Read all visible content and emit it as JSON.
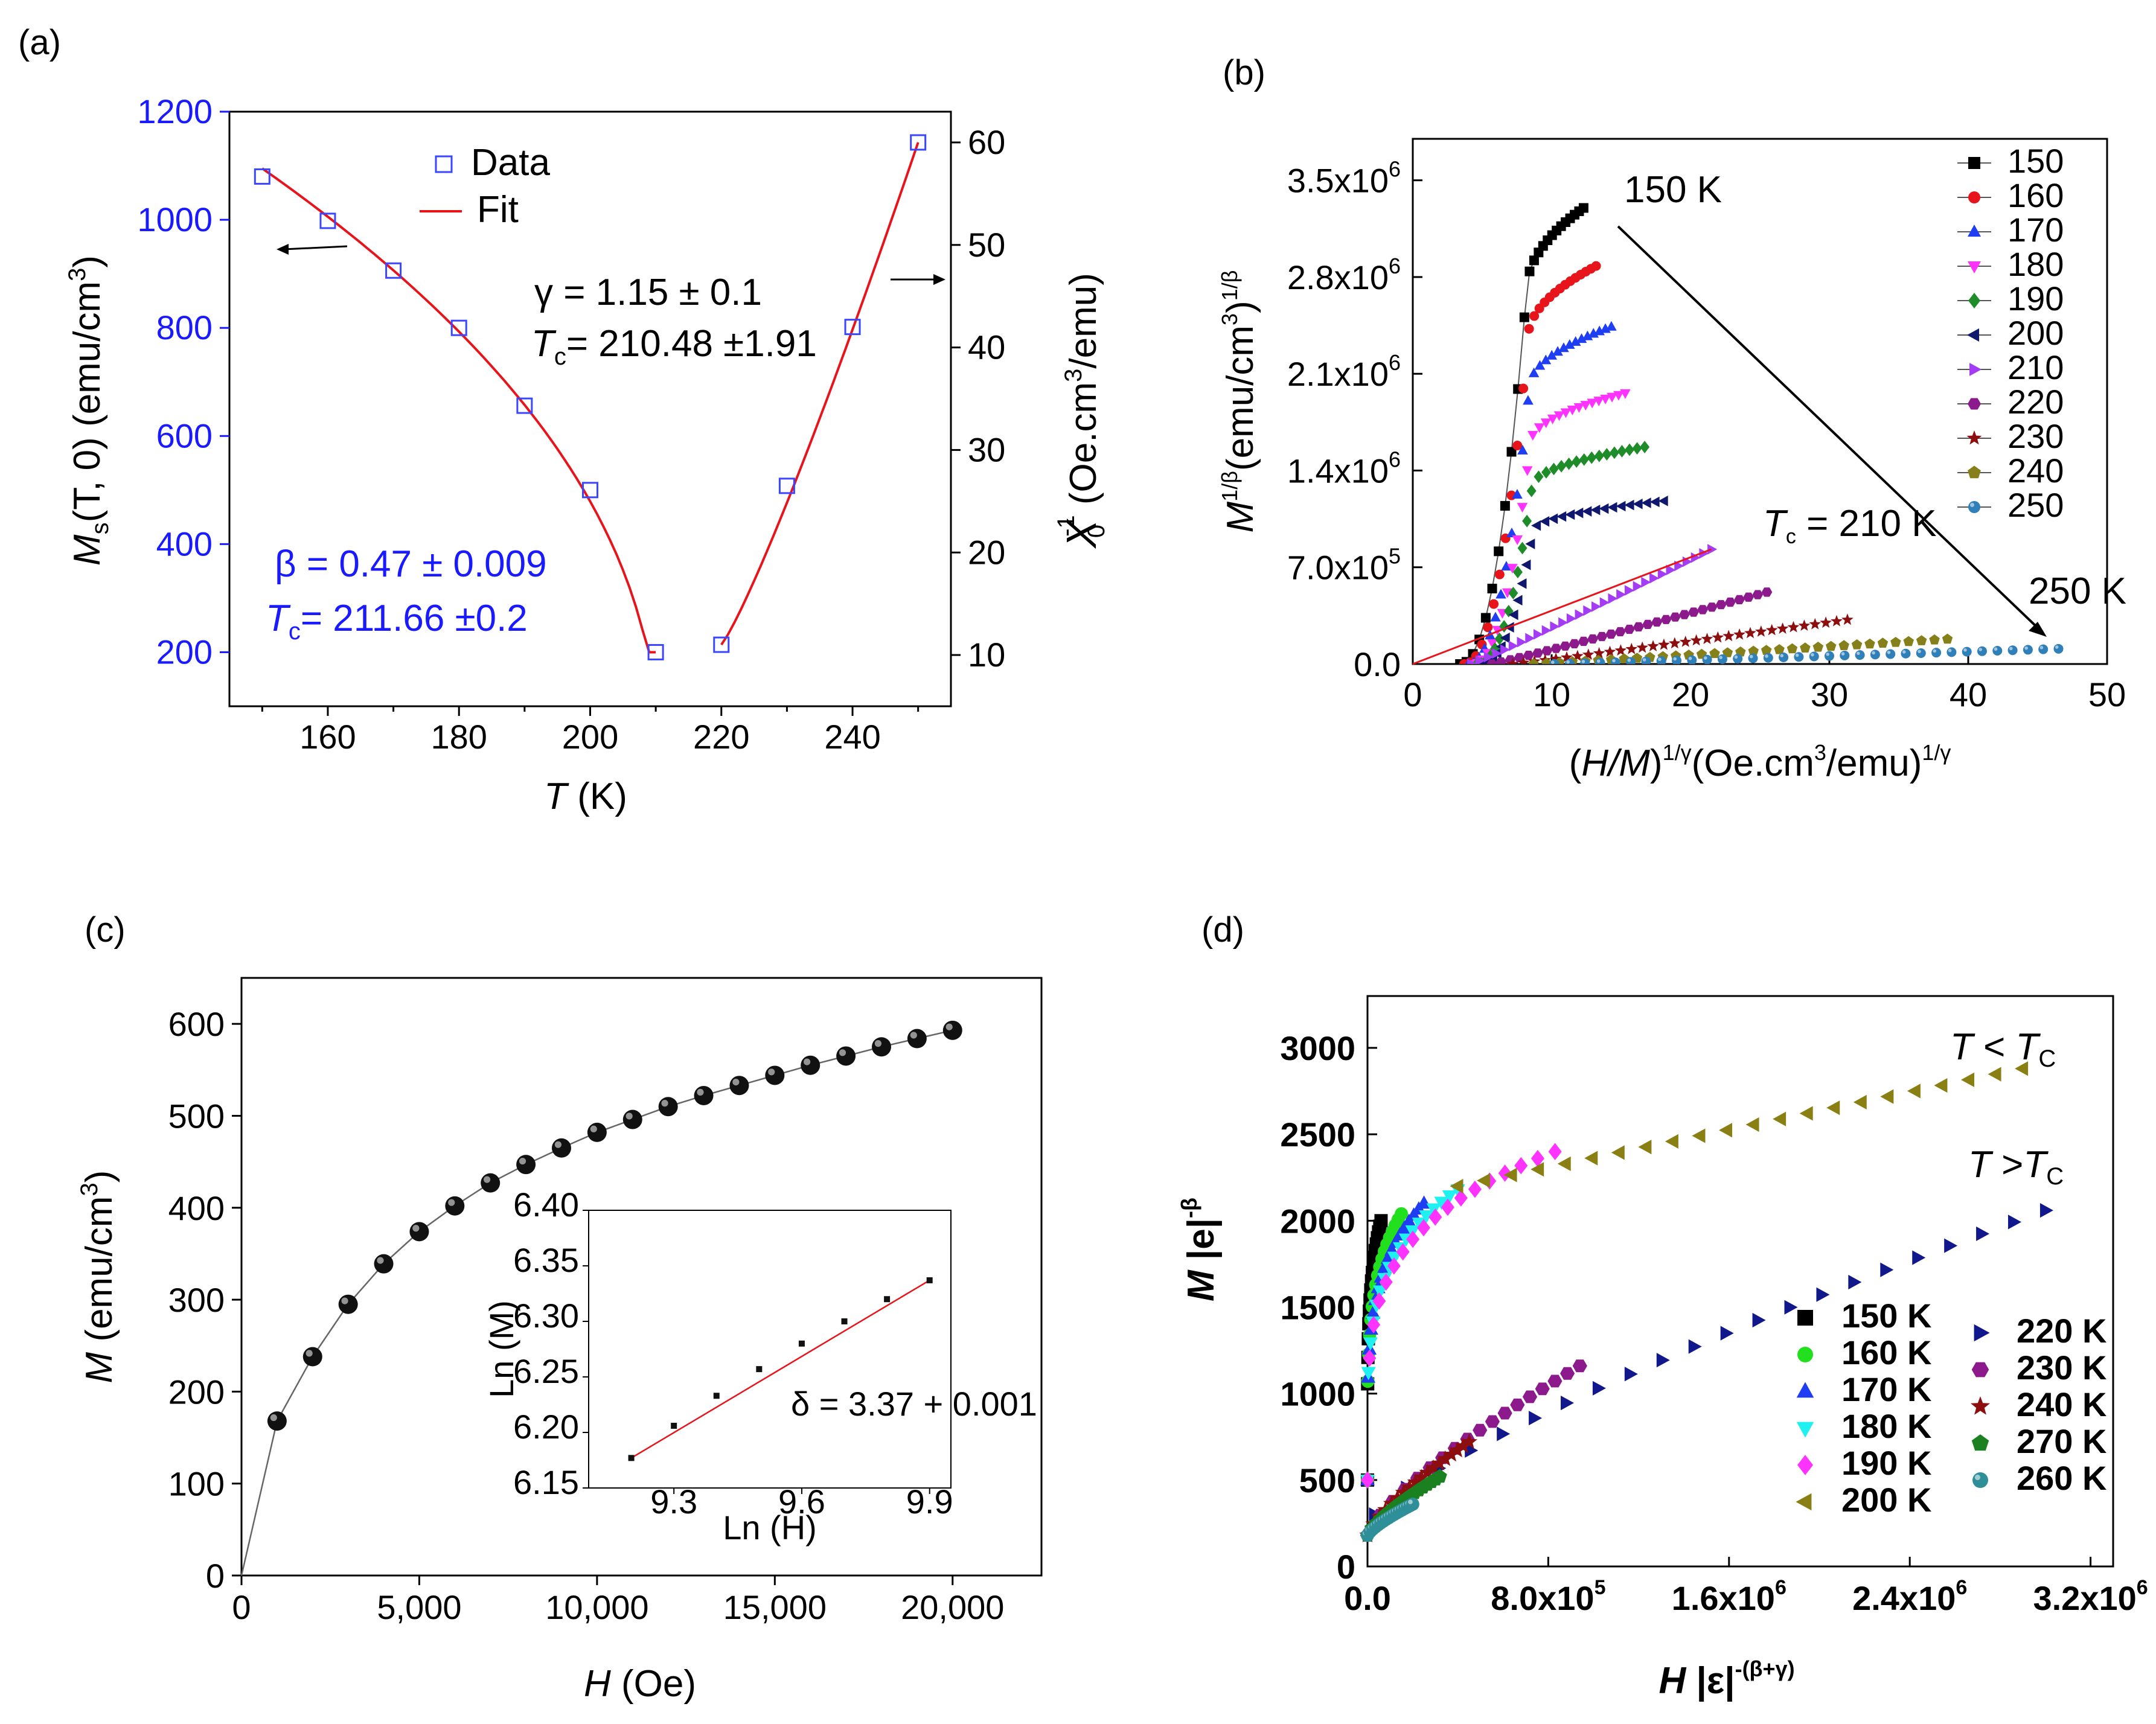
{
  "chart_data": [
    {
      "panel": "(a)",
      "type": "scatter",
      "xlabel": "T (K)",
      "ylabel_left": "Ms(T, 0) (emu/cm3)",
      "ylabel_right": "X0^-1 (Oe.cm3/emu)",
      "xlim": [
        145,
        255
      ],
      "ylim_left": [
        100,
        1200
      ],
      "ylim_right": [
        5,
        63
      ],
      "x_ticks": [
        "160",
        "180",
        "200",
        "220",
        "240"
      ],
      "y_ticks_left": [
        "200",
        "400",
        "600",
        "800",
        "1000",
        "1200"
      ],
      "y_ticks_right": [
        "10",
        "20",
        "30",
        "40",
        "50",
        "60"
      ],
      "legend": [
        "Data",
        "Fit"
      ],
      "series": [
        {
          "name": "Ms(T,0)",
          "axis": "left",
          "x": [
            150,
            160,
            170,
            180,
            190,
            200,
            210
          ],
          "y": [
            1080,
            998,
            906,
            800,
            656,
            500,
            200
          ]
        },
        {
          "name": "X0^-1",
          "axis": "right",
          "x": [
            220,
            230,
            240,
            250
          ],
          "y": [
            11,
            26.5,
            42,
            60
          ]
        }
      ],
      "annotations": {
        "gamma": "γ = 1.15 ± 0.1",
        "tc_gamma": "= 210.48 ±1.91",
        "beta": "β = 0.47 ± 0.009",
        "tc_beta": "= 211.66 ±0.2"
      },
      "text": {
        "label": "(a)",
        "tc_symbol": "T",
        "tc_sub": "c",
        "ms_symbol": "M",
        "ms_sub": "s",
        "ms_rest": "(T, 0) (emu/cm",
        "ms_sup": "3",
        "ms_close": ")",
        "chi_symbol": "X",
        "chi_sub": "0",
        "chi_sup": "-1",
        "chi_rest": "(Oe.cm",
        "chi_sup2": "3",
        "chi_close": "/emu)",
        "x_symbol": "T",
        "x_unit": "(K)"
      }
    },
    {
      "panel": "(b)",
      "type": "scatter",
      "xlabel": "(H/M)^(1/γ) (Oe.cm3/emu)^(1/γ)",
      "ylabel": "M^(1/β) (emu/cm3)^(1/β)",
      "xlim": [
        0,
        50
      ],
      "ylim": [
        0,
        3800000
      ],
      "x_ticks": [
        "0",
        "10",
        "20",
        "30",
        "40",
        "50"
      ],
      "y_ticks": [
        "0.0",
        "7.0x10",
        "1.4x10",
        "2.1x10",
        "2.8x10",
        "3.5x10"
      ],
      "y_tick_exp": [
        "",
        "5",
        "6",
        "6",
        "6",
        "6"
      ],
      "legend": [
        "150",
        "160",
        "170",
        "180",
        "190",
        "200",
        "210",
        "220",
        "230",
        "240",
        "250"
      ],
      "colors": [
        "#000000",
        "#e8141b",
        "#1f3df2",
        "#ff33ff",
        "#1f8c2a",
        "#10186e",
        "#a53cf5",
        "#8c1a8c",
        "#8c0e0e",
        "#85801a",
        "#2f7fb8"
      ],
      "series_end_x": [
        12.3,
        13.2,
        14.3,
        15.3,
        16.7,
        18.1,
        21.5,
        25.5,
        31.3,
        38.5,
        46.5
      ],
      "series_end_y": [
        3300000,
        2880000,
        2440000,
        1960000,
        1570000,
        1180000,
        830000,
        520000,
        320000,
        180000,
        110000
      ],
      "annotations": {
        "tc_line_rest": " = 210 K",
        "t150": "150 K",
        "t250": "250 K"
      },
      "text": {
        "label": "(b)",
        "tc_symbol": "T",
        "tc_sub": "c",
        "ylab_m": "M",
        "ylab_sup": "1/β",
        "ylab_rest": "(emu/cm",
        "ylab_3": "3",
        "ylab_close": ")",
        "ylab_sup2": "1/β",
        "xlab_open": "(",
        "xlab_hm": "H/M",
        "xlab_close": ")",
        "xlab_sup": "1/γ",
        "xlab_rest": "(Oe.cm",
        "xlab_3": "3",
        "xlab_close2": "/emu)",
        "xlab_sup2": "1/γ"
      }
    },
    {
      "panel": "(c)",
      "type": "scatter",
      "xlabel": "H (Oe)",
      "ylabel": "M (emu/cm3)",
      "xlim": [
        0,
        22500
      ],
      "ylim": [
        0,
        650
      ],
      "x_ticks": [
        "0",
        "5,000",
        "10,000",
        "15,000",
        "20,000"
      ],
      "y_ticks": [
        "0",
        "100",
        "200",
        "300",
        "400",
        "500",
        "600"
      ],
      "x": [
        0,
        1000,
        2000,
        3000,
        4000,
        5000,
        6000,
        7000,
        8000,
        9000,
        10000,
        11000,
        12000,
        13000,
        14000,
        15000,
        16000,
        17000,
        18000,
        19000,
        20000
      ],
      "y": [
        0,
        168,
        238,
        295,
        339,
        374,
        402,
        427,
        447,
        465,
        482,
        496,
        510,
        522,
        533,
        544,
        555,
        565,
        575,
        584,
        593
      ],
      "inset": {
        "type": "line",
        "xlabel": "Ln (H)",
        "ylabel": "Ln (M)",
        "xlim": [
          9.1,
          9.95
        ],
        "ylim": [
          6.15,
          6.4
        ],
        "x_ticks": [
          "9.3",
          "9.6",
          "9.9"
        ],
        "y_ticks": [
          "6.15",
          "6.20",
          "6.25",
          "6.30",
          "6.35",
          "6.40"
        ],
        "x": [
          9.2,
          9.3,
          9.4,
          9.5,
          9.6,
          9.7,
          9.8,
          9.9
        ],
        "y": [
          6.177,
          6.206,
          6.233,
          6.257,
          6.28,
          6.3,
          6.32,
          6.337
        ],
        "annotation": "δ = 3.37 + 0.001"
      },
      "text": {
        "label": "(c)",
        "ylab_m": "M",
        "ylab_rest": " (emu/cm",
        "ylab_3": "3",
        "ylab_close": ")",
        "xlab_h": "H",
        "xlab_rest": " (Oe)"
      }
    },
    {
      "panel": "(d)",
      "type": "scatter",
      "xlabel": "H |ε|^-(β+γ)",
      "ylabel": "M |e|^-β",
      "xlim": [
        0,
        3300000
      ],
      "ylim": [
        0,
        3300
      ],
      "x_ticks": [
        "0.0",
        "8.0x10",
        "1.6x10",
        "2.4x10",
        "3.2x10"
      ],
      "x_tick_exp": [
        "",
        "5",
        "6",
        "6",
        "6"
      ],
      "y_ticks": [
        "0",
        "500",
        "1000",
        "1500",
        "2000",
        "2500",
        "3000"
      ],
      "legend_left": [
        "150 K",
        "160 K",
        "170 K",
        "180 K",
        "190 K",
        "200 K"
      ],
      "legend_right": [
        "220 K",
        "230 K",
        "240 K",
        "270 K",
        "260 K"
      ],
      "annotations": {
        "t_lt": " < ",
        "t_gt": " >"
      },
      "series": [
        {
          "name": "150 K",
          "end": [
            60000,
            2000
          ]
        },
        {
          "name": "160 K",
          "end": [
            150000,
            2040
          ]
        },
        {
          "name": "170 K",
          "end": [
            250000,
            2100
          ]
        },
        {
          "name": "180 K",
          "end": [
            400000,
            2180
          ]
        },
        {
          "name": "190 K",
          "end": [
            830000,
            2400
          ]
        },
        {
          "name": "200 K",
          "end": [
            2900000,
            2880
          ]
        },
        {
          "name": "220 K",
          "end": [
            3000000,
            2060
          ]
        },
        {
          "name": "230 K",
          "end": [
            940000,
            1160
          ]
        },
        {
          "name": "240 K",
          "end": [
            450000,
            720
          ]
        },
        {
          "name": "270 K",
          "end": [
            320000,
            520
          ]
        },
        {
          "name": "260 K",
          "end": [
            200000,
            360
          ]
        }
      ],
      "text": {
        "label": "(d)",
        "ylab_m": "M",
        "ylab_abs": " |e|",
        "ylab_sup": "-β",
        "xlab_h": "H",
        "xlab_abs": " |ε|",
        "xlab_sup": "-(β+γ)",
        "t": "T",
        "tc": "T",
        "c": "C"
      }
    }
  ]
}
